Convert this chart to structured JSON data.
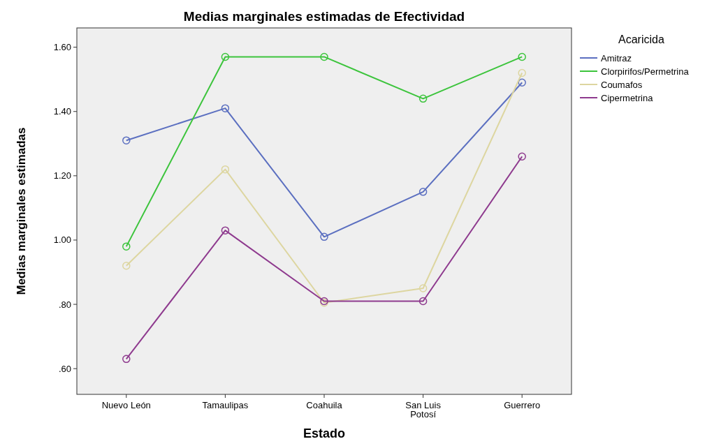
{
  "chart_data": {
    "type": "line",
    "title": "Medias marginales estimadas de Efectividad",
    "xlabel": "Estado",
    "ylabel": "Medias marginales estimadas",
    "legend_title": "Acaricida",
    "categories": [
      "Nuevo León",
      "Tamaulipas",
      "Coahuila",
      "San Luis Potosí",
      "Guerrero"
    ],
    "series": [
      {
        "name": "Amitraz",
        "color": "#5b6fc0",
        "values": [
          1.31,
          1.41,
          1.01,
          1.15,
          1.49
        ]
      },
      {
        "name": "Clorpirifos/Permetrina",
        "color": "#3cc43c",
        "values": [
          0.98,
          1.57,
          1.57,
          1.44,
          1.57
        ]
      },
      {
        "name": "Coumafos",
        "color": "#ddd6a0",
        "values": [
          0.92,
          1.22,
          0.805,
          0.85,
          1.52
        ]
      },
      {
        "name": "Cipermetrina",
        "color": "#8e3a8e",
        "values": [
          0.63,
          1.03,
          0.81,
          0.81,
          1.26
        ]
      }
    ],
    "ylim": [
      0.52,
      1.66
    ],
    "yticks": [
      {
        "value": 0.6,
        "label": ".60"
      },
      {
        "value": 0.8,
        "label": ".80"
      },
      {
        "value": 1.0,
        "label": "1.00"
      },
      {
        "value": 1.2,
        "label": "1.20"
      },
      {
        "value": 1.4,
        "label": "1.40"
      },
      {
        "value": 1.6,
        "label": "1.60"
      }
    ],
    "marker": "circle",
    "line_style": "solid",
    "legend": "right",
    "grid": false
  }
}
